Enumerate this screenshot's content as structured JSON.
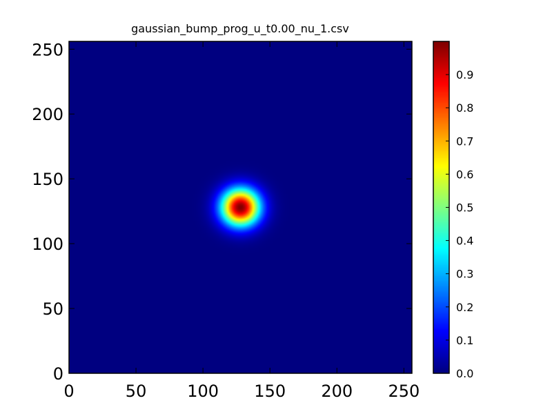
{
  "chart_data": {
    "type": "heatmap",
    "title": "gaussian_bump_prog_u_t0.00_nu_1.csv",
    "xlabel": "",
    "ylabel": "",
    "colormap": "jet",
    "grid": false,
    "xlim": [
      0,
      256
    ],
    "ylim": [
      0,
      256
    ],
    "x_ticks": [
      "0",
      "50",
      "100",
      "150",
      "200",
      "250"
    ],
    "y_ticks": [
      "0",
      "50",
      "100",
      "150",
      "200",
      "250"
    ],
    "field": {
      "kind": "gaussian",
      "center_x": 128,
      "center_y": 128,
      "sigma": 10,
      "amplitude": 1.0
    },
    "colorbar": {
      "range": [
        0,
        1.0
      ],
      "ticks": [
        "0.0",
        "0.1",
        "0.2",
        "0.3",
        "0.4",
        "0.5",
        "0.6",
        "0.7",
        "0.8",
        "0.9"
      ]
    }
  }
}
